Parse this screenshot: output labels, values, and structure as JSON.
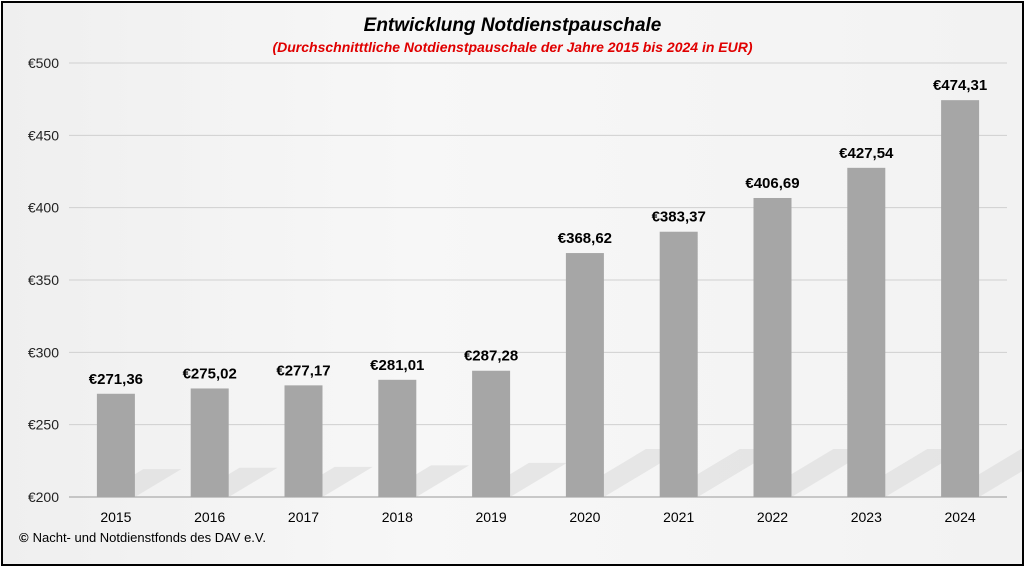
{
  "chart_data": {
    "type": "bar",
    "title": "Entwicklung  Notdienstpauschale",
    "subtitle": "(Durchschnitttliche Notdienstpauschale der Jahre 2015 bis 2024 in EUR)",
    "categories": [
      "2015",
      "2016",
      "2017",
      "2018",
      "2019",
      "2020",
      "2021",
      "2022",
      "2023",
      "2024"
    ],
    "values": [
      271.36,
      275.02,
      277.17,
      281.01,
      287.28,
      368.62,
      383.37,
      406.69,
      427.54,
      474.31
    ],
    "data_labels": [
      "€271,36",
      "€275,02",
      "€277,17",
      "€281,01",
      "€287,28",
      "€368,62",
      "€383,37",
      "€406,69",
      "€427,54",
      "€474,31"
    ],
    "y_ticks": [
      200,
      250,
      300,
      350,
      400,
      450,
      500
    ],
    "y_tick_labels": [
      "€200",
      "€250",
      "€300",
      "€350",
      "€400",
      "€450",
      "€500"
    ],
    "ylim": [
      200,
      500
    ],
    "grid": true,
    "legend": "none",
    "bar_color": "#a6a6a6",
    "subtitle_color": "#e00000"
  },
  "footer": {
    "copyright_symbol": "©",
    "copyright_text": "Nacht- und Notdienstfonds  des DAV e.V."
  }
}
